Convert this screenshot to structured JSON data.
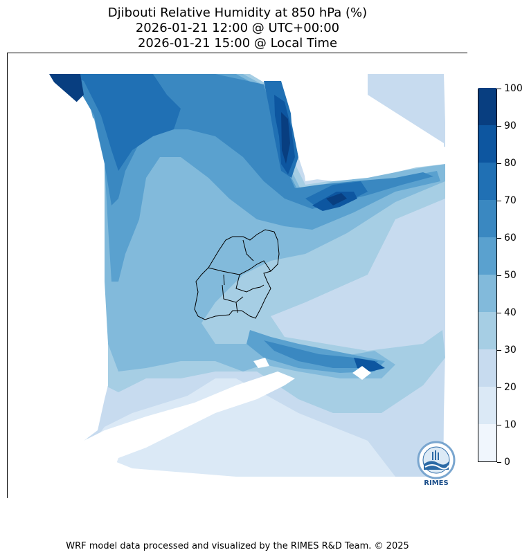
{
  "title": {
    "line1": "Djibouti Relative Humidity at 850 hPa (%)",
    "line2": "2026-01-21 12:00 @ UTC+00:00",
    "line3": "2026-01-21 15:00 @ Local Time"
  },
  "colorbar": {
    "levels": [
      0,
      10,
      20,
      30,
      40,
      50,
      60,
      70,
      80,
      90,
      100
    ],
    "labels": [
      "0",
      "10",
      "20",
      "30",
      "40",
      "50",
      "60",
      "70",
      "80",
      "90",
      "100"
    ],
    "colors": [
      "#f0f6fd",
      "#dbe9f6",
      "#c7dbef",
      "#a6cee4",
      "#82badb",
      "#5aa1cf",
      "#3a88c1",
      "#2070b4",
      "#0d56a0",
      "#083e80"
    ]
  },
  "credit": "WRF model data processed and visualized by the RIMES R&D Team. © 2025",
  "logo": {
    "text": "RIMES",
    "icon": "rimes-logo-icon"
  }
}
